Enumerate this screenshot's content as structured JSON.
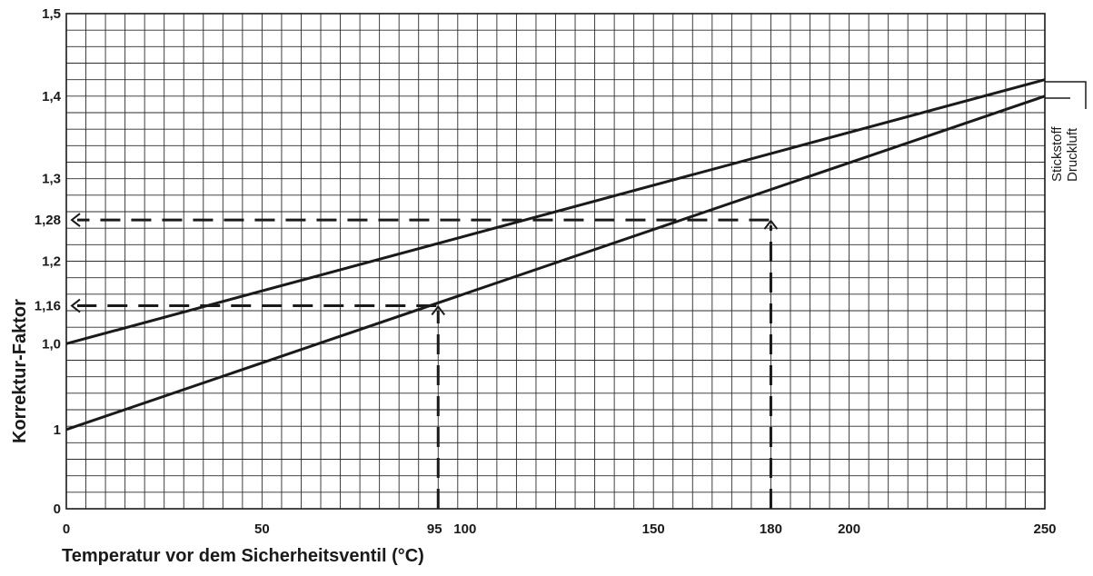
{
  "chart_data": {
    "type": "line",
    "xlabel": "Temperatur vor dem Sicherheitsventil (°C)",
    "ylabel": "Korrektur-Faktor",
    "xlim": [
      0,
      250
    ],
    "ylim": [
      0,
      1.5
    ],
    "x_ticks": [
      "0",
      "50",
      "95",
      "100",
      "150",
      "180",
      "200",
      "250"
    ],
    "y_ticks": [
      "0",
      "1",
      "1,0",
      "1,16",
      "1,2",
      "1,28",
      "1,3",
      "1,4",
      "1,5"
    ],
    "grid": true,
    "series": [
      {
        "name": "Stickstoff",
        "x": [
          0,
          250
        ],
        "y": [
          1.0,
          1.42
        ]
      },
      {
        "name": "Druckluft",
        "x": [
          0,
          250
        ],
        "y": [
          0.98,
          1.4
        ]
      }
    ],
    "annotations": [
      {
        "x": 95,
        "y": 1.16,
        "label": "1,16"
      },
      {
        "x": 180,
        "y": 1.28,
        "label": "1,28"
      }
    ],
    "legend_position": "right"
  }
}
